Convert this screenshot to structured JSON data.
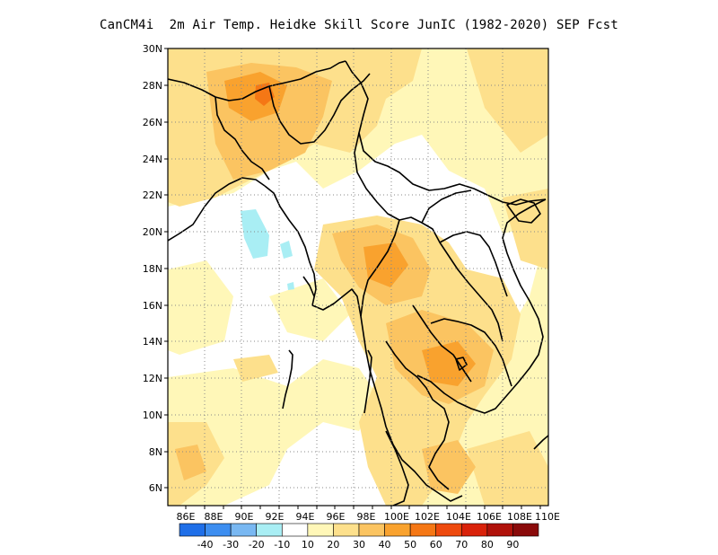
{
  "title": "CanCM4i  2m Air Temp. Heidke Skill Score JunIC (1982-2020) SEP Fcst",
  "map": {
    "lat_labels": [
      "30N",
      "28N",
      "26N",
      "24N",
      "22N",
      "20N",
      "18N",
      "16N",
      "14N",
      "12N",
      "10N",
      "8N",
      "6N"
    ],
    "lon_labels": [
      "86E",
      "88E",
      "90E",
      "92E",
      "94E",
      "96E",
      "98E",
      "100E",
      "102E",
      "104E",
      "106E",
      "108E",
      "110E"
    ],
    "extent": {
      "lon_min": 85,
      "lon_max": 110,
      "lat_min": 5,
      "lat_max": 30
    },
    "grid": "dotted",
    "background_color": "#ffffff",
    "coastline_color": "#000000"
  },
  "colorbar": {
    "labels": [
      "-40",
      "-30",
      "-20",
      "-10",
      "10",
      "20",
      "30",
      "40",
      "50",
      "60",
      "70",
      "80",
      "90"
    ],
    "colors": [
      "#1f6fe8",
      "#3d8ef0",
      "#79b8f2",
      "#a9eef4",
      "#ffffff",
      "#fff7b8",
      "#fde08c",
      "#fbc461",
      "#f9a22e",
      "#f57715",
      "#ee4a0e",
      "#d9220a",
      "#b0120a",
      "#8a0a0a"
    ]
  }
}
